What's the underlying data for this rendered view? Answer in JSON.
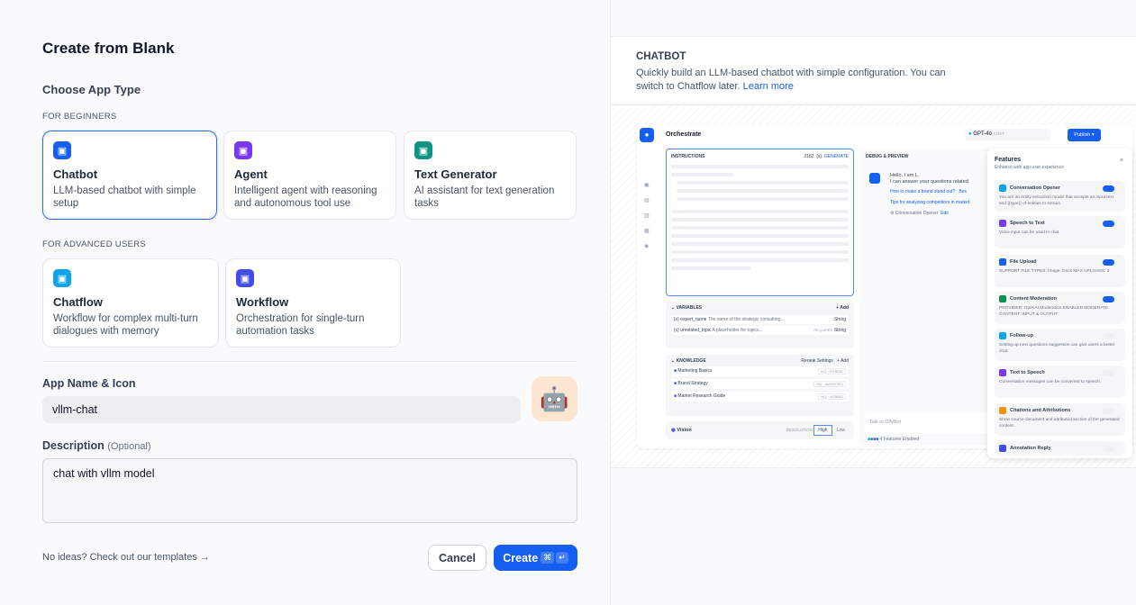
{
  "left": {
    "title": "Create from Blank",
    "choose_type": "Choose App Type",
    "beginners_label": "FOR BEGINNERS",
    "advanced_label": "FOR ADVANCED USERS",
    "beginner_types": [
      {
        "name": "Chatbot",
        "desc": "LLM-based chatbot with simple setup",
        "icon": "chatbot-icon",
        "color": "#155eef",
        "selected": true
      },
      {
        "name": "Agent",
        "desc": "Intelligent agent with reasoning and autonomous tool use",
        "icon": "agent-icon",
        "color": "#7839ee"
      },
      {
        "name": "Text Generator",
        "desc": "AI assistant for text generation tasks",
        "icon": "text-generator-icon",
        "color": "#0e9384"
      }
    ],
    "advanced_types": [
      {
        "name": "Chatflow",
        "desc": "Workflow for complex multi-turn dialogues with memory",
        "icon": "chatflow-icon",
        "color": "#0ba5ec"
      },
      {
        "name": "Workflow",
        "desc": "Orchestration for single-turn automation tasks",
        "icon": "workflow-icon",
        "color": "#444ce7"
      }
    ],
    "name_label": "App Name & Icon",
    "name_value": "vllm-chat",
    "app_icon": "🤖",
    "desc_label": "Description",
    "desc_optional": "(Optional)",
    "desc_value": "chat with vllm model",
    "templates_link": "No ideas? Check out our templates",
    "templates_arrow": "→",
    "cancel": "Cancel",
    "create": "Create",
    "create_kbd1": "⌘",
    "create_kbd2": "↵",
    "accent": "#155eef"
  },
  "right": {
    "heading": "CHATBOT",
    "desc": "Quickly build an LLM-based chatbot with simple configuration. You can switch to Chatflow later.",
    "learn_more": "Learn more",
    "preview": {
      "orchestrate": "Orchestrate",
      "model": "GPT-4o",
      "model_mode": "CHAT",
      "publish": "Publish",
      "instructions": "INSTRUCTIONS",
      "char_count": "2182",
      "var_token": "{x}",
      "generate": "GENERATE",
      "variables": "VARIABLES",
      "add": "+ Add",
      "vars": [
        {
          "key": "{x} expert_name",
          "desc": "The name of the strategic consulting...",
          "required": "",
          "type": "String"
        },
        {
          "key": "{x} unrelated_topic",
          "desc": "A placeholder for topics...",
          "required": "REQUIRED",
          "type": "String"
        }
      ],
      "knowledge": "KNOWLEDGE",
      "rerank": "Rerank Settings",
      "kb": [
        {
          "name": "Marketing Basics",
          "tag": "HQ · HYBRID"
        },
        {
          "name": "Brand Strategy",
          "tag": "HQ · INVERTED"
        },
        {
          "name": "Market Research Guide",
          "tag": "HQ · HYBRID"
        }
      ],
      "vision": "Vision",
      "resolution": "RESOLUTION",
      "high": "High",
      "low": "Low",
      "debug": "DEBUG & PREVIEW",
      "greeting1": "Hello, I am L.",
      "greeting2": "I can answer your questions related",
      "suggest1": "How to make a brand stand out?",
      "suggest1b": "Bes",
      "suggest2": "Tips for analyzing competitors in market",
      "opener": "⚙ Conversation Opener",
      "edit": "Edit",
      "chat_placeholder": "Talk to DifyBot",
      "features_enabled": "4 Features Enabled",
      "features_title": "Features",
      "features_sub": "Enhance web app user experience",
      "features": [
        {
          "name": "Conversation Opener",
          "desc": "You are an entity extraction model that accepts an input text and {{type}} of entities to extract.",
          "on": true,
          "color": "#0ba5ec"
        },
        {
          "name": "Speech to Text",
          "desc": "Voice input can be used in chat.",
          "on": true,
          "color": "#7839ee"
        },
        {
          "name": "File Upload",
          "desc": "SUPPORT FILE TYPES: Image, Docs   MAX UPLOADS: 3",
          "on": true,
          "color": "#155eef"
        },
        {
          "name": "Content Moderation",
          "desc": "PROVIDER: OpenAI Moderation   ENABLED MODERATE CONTENT: INPUT & OUTPUT",
          "on": true,
          "color": "#099250"
        },
        {
          "name": "Follow-up",
          "desc": "Setting up next questions suggestion can give users a better chat.",
          "on": false,
          "color": "#0ba5ec"
        },
        {
          "name": "Text to Speech",
          "desc": "Conversation messages can be converted to speech.",
          "on": false,
          "color": "#7839ee"
        },
        {
          "name": "Citations and Attributions",
          "desc": "Show source document and attributed section of the generated content.",
          "on": false,
          "color": "#f79009"
        },
        {
          "name": "Annotation Reply",
          "desc": "",
          "on": false,
          "color": "#444ce7"
        }
      ]
    }
  }
}
